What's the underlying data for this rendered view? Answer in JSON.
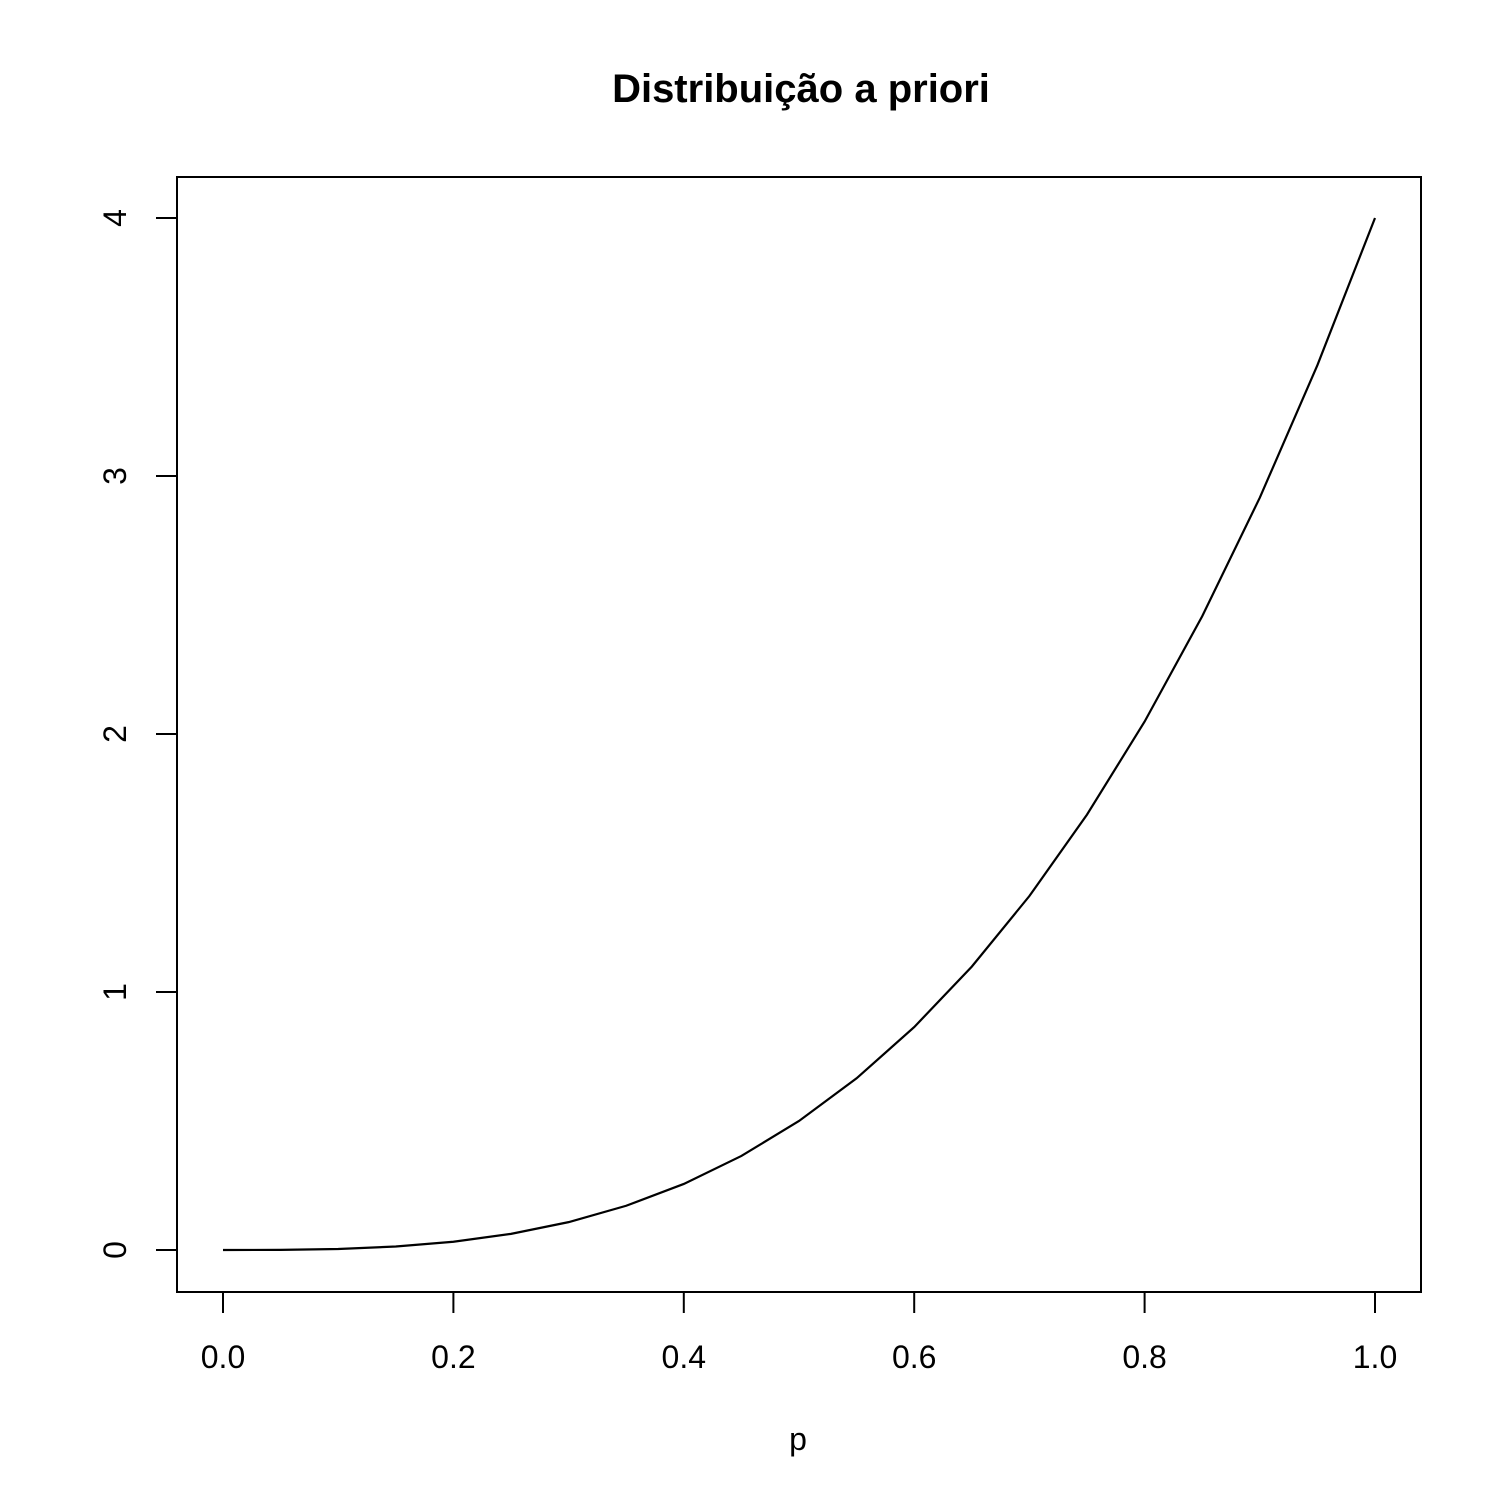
{
  "chart_data": {
    "type": "line",
    "title": "Distribuição a priori",
    "xlabel": "p",
    "ylabel": "",
    "xlim": [
      0.0,
      1.0
    ],
    "ylim": [
      0,
      4
    ],
    "x_ticks": [
      0.0,
      0.2,
      0.4,
      0.6,
      0.8,
      1.0
    ],
    "x_tick_labels": [
      "0.0",
      "0.2",
      "0.4",
      "0.6",
      "0.8",
      "1.0"
    ],
    "y_ticks": [
      0,
      1,
      2,
      3,
      4
    ],
    "y_tick_labels": [
      "0",
      "1",
      "2",
      "3",
      "4"
    ],
    "grid": false,
    "legend": "none",
    "series": [
      {
        "x": [
          0.0,
          0.05,
          0.1,
          0.15,
          0.2,
          0.25,
          0.3,
          0.35,
          0.4,
          0.45,
          0.5,
          0.55,
          0.6,
          0.65,
          0.7,
          0.75,
          0.8,
          0.85,
          0.9,
          0.95,
          1.0
        ],
        "values": [
          0.0,
          0.0005,
          0.004,
          0.0135,
          0.032,
          0.0625,
          0.108,
          0.1715,
          0.256,
          0.3645,
          0.5,
          0.6655,
          0.864,
          1.0985,
          1.372,
          1.6875,
          2.048,
          2.4565,
          2.916,
          3.4295,
          4.0
        ]
      }
    ]
  }
}
